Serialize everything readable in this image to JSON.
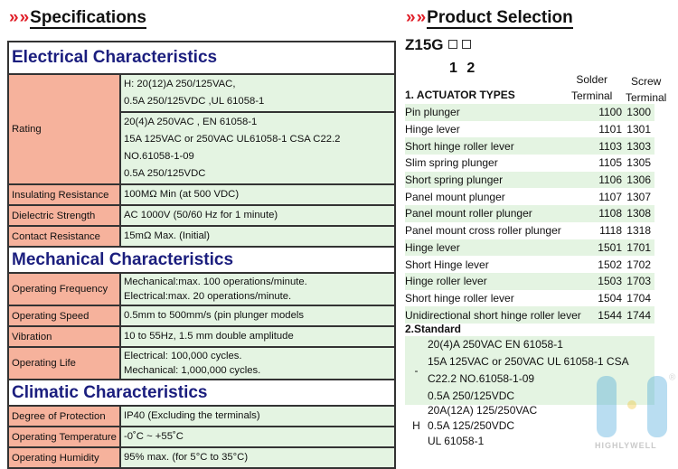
{
  "specifications": {
    "title": "Specifications",
    "title_mark": "»",
    "electrical": {
      "heading": "Electrical Characteristics",
      "rating_label": "Rating",
      "rating_h": [
        "H: 20(12)A 250/125VAC,",
        "0.5A 250/125VDC ,UL 61058-1"
      ],
      "rating_std": [
        "20(4)A 250VAC , EN 61058-1",
        "15A 125VAC or 250VAC UL61058-1 CSA C22.2 NO.61058-1-09",
        "0.5A 250/125VDC"
      ],
      "rows": [
        {
          "label": "Insulating Resistance",
          "value": "100MΩ Min (at 500 VDC)"
        },
        {
          "label": "Dielectric Strength",
          "value": "AC 1000V (50/60 Hz for 1 minute)"
        },
        {
          "label": "Contact Resistance",
          "value": "15mΩ Max. (Initial)"
        }
      ]
    },
    "mechanical": {
      "heading": "Mechanical Characteristics",
      "freq_label": "Operating Frequency",
      "freq": [
        "Mechanical:max. 100 operations/minute.",
        "Electrical:max. 20 operations/minute."
      ],
      "speed_label": "Operating Speed",
      "speed": "0.5mm to 500mm/s (pin plunger models",
      "vib_label": "Vibration",
      "vib": "10 to 55Hz, 1.5 mm double amplitude",
      "life_label": "Operating Life",
      "life": [
        "Electrical: 100,000 cycles.",
        "Mechanical: 1,000,000 cycles."
      ]
    },
    "climatic": {
      "heading": "Climatic Characteristics",
      "rows": [
        {
          "label": "Degree of Protection",
          "value": "IP40 (Excluding the terminals)"
        },
        {
          "label": "Operating Temperature",
          "value": "-0˚C ~ +55˚C"
        },
        {
          "label": "Operating Humidity",
          "value": "95% max. (for 5°C to 35°C)"
        }
      ]
    }
  },
  "product": {
    "title": "Product Selection",
    "title_mark": "»",
    "model": "Z15G",
    "positions": "1 2",
    "col_solder": [
      "Solder",
      "Terminal"
    ],
    "col_screw": [
      "Screw",
      "Terminal"
    ],
    "actuator_heading": "1. ACTUATOR TYPES",
    "actuators": [
      [
        "Pin plunger",
        "1100",
        "1300"
      ],
      [
        "Hinge lever",
        "1101",
        "1301"
      ],
      [
        "Short hinge roller lever",
        "1103",
        "1303"
      ],
      [
        "Slim spring plunger",
        "1105",
        "1305"
      ],
      [
        "Short spring plunger",
        "1106",
        "1306"
      ],
      [
        "Panel mount plunger",
        "1107",
        "1307"
      ],
      [
        "Panel mount roller plunger",
        "1108",
        "1308"
      ],
      [
        "Panel mount cross roller plunger",
        "1118",
        "1318"
      ],
      [
        "Hinge lever",
        "1501",
        "1701"
      ],
      [
        "Short Hinge lever",
        "1502",
        "1702"
      ],
      [
        "Hinge roller lever",
        "1503",
        "1703"
      ],
      [
        "Short hinge roller lever",
        "1504",
        "1704"
      ],
      [
        "Unidirectional short hinge roller lever",
        "1544",
        "1744"
      ]
    ],
    "standard_heading": "2.Standard",
    "standards": [
      {
        "code": "-",
        "lines": [
          "20(4)A 250VAC    EN 61058-1",
          "15A 125VAC or 250VAC  UL 61058-1 CSA",
          "C22.2 NO.61058-1-09",
          "0.5A 250/125VDC"
        ]
      },
      {
        "code": "H",
        "lines": [
          "20A(12A)  125/250VAC",
          "0.5A 125/250VDC",
          "UL 61058-1"
        ]
      }
    ]
  },
  "logo": {
    "text": "HIGHLYWELL",
    "mark": "®"
  },
  "colors": {
    "section_heading": "#1b1e7e",
    "label_bg": "#f6b29c",
    "value_bg": "#e4f4e2",
    "accent": "#e0202a"
  }
}
